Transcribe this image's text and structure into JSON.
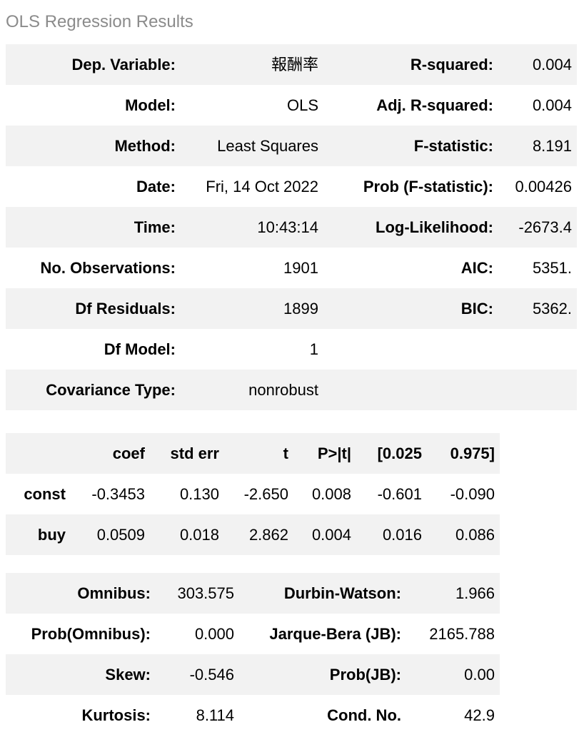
{
  "title": "OLS Regression Results",
  "colors": {
    "stripe_background": "#f2f2f2",
    "text": "#000000",
    "title_text": "#8b8b8b",
    "page_background": "#ffffff"
  },
  "summary_table": {
    "rows": [
      {
        "l1": "Dep. Variable:",
        "v1": "報酬率",
        "l2": "R-squared:",
        "v2": "0.004"
      },
      {
        "l1": "Model:",
        "v1": "OLS",
        "l2": "Adj. R-squared:",
        "v2": "0.004"
      },
      {
        "l1": "Method:",
        "v1": "Least Squares",
        "l2": "F-statistic:",
        "v2": "8.191"
      },
      {
        "l1": "Date:",
        "v1": "Fri, 14 Oct 2022",
        "l2": "Prob (F-statistic):",
        "v2": "0.00426"
      },
      {
        "l1": "Time:",
        "v1": "10:43:14",
        "l2": "Log-Likelihood:",
        "v2": "-2673.4"
      },
      {
        "l1": "No. Observations:",
        "v1": "1901",
        "l2": "AIC:",
        "v2": "5351."
      },
      {
        "l1": "Df Residuals:",
        "v1": "1899",
        "l2": "BIC:",
        "v2": "5362."
      },
      {
        "l1": "Df Model:",
        "v1": "1",
        "l2": "",
        "v2": ""
      },
      {
        "l1": "Covariance Type:",
        "v1": "nonrobust",
        "l2": "",
        "v2": ""
      }
    ]
  },
  "coef_table": {
    "headers": [
      "",
      "coef",
      "std err",
      "t",
      "P>|t|",
      "[0.025",
      "0.975]"
    ],
    "rows": [
      {
        "name": "const",
        "coef": "-0.3453",
        "std_err": "0.130",
        "t": "-2.650",
        "p": "0.008",
        "ci_low": "-0.601",
        "ci_high": "-0.090"
      },
      {
        "name": "buy",
        "coef": "0.0509",
        "std_err": "0.018",
        "t": "2.862",
        "p": "0.004",
        "ci_low": "0.016",
        "ci_high": "0.086"
      }
    ]
  },
  "diagnostics_table": {
    "rows": [
      {
        "l1": "Omnibus:",
        "v1": "303.575",
        "l2": "Durbin-Watson:",
        "v2": "1.966"
      },
      {
        "l1": "Prob(Omnibus):",
        "v1": "0.000",
        "l2": "Jarque-Bera (JB):",
        "v2": "2165.788"
      },
      {
        "l1": "Skew:",
        "v1": "-0.546",
        "l2": "Prob(JB):",
        "v2": "0.00"
      },
      {
        "l1": "Kurtosis:",
        "v1": "8.114",
        "l2": "Cond. No.",
        "v2": "42.9"
      }
    ]
  }
}
